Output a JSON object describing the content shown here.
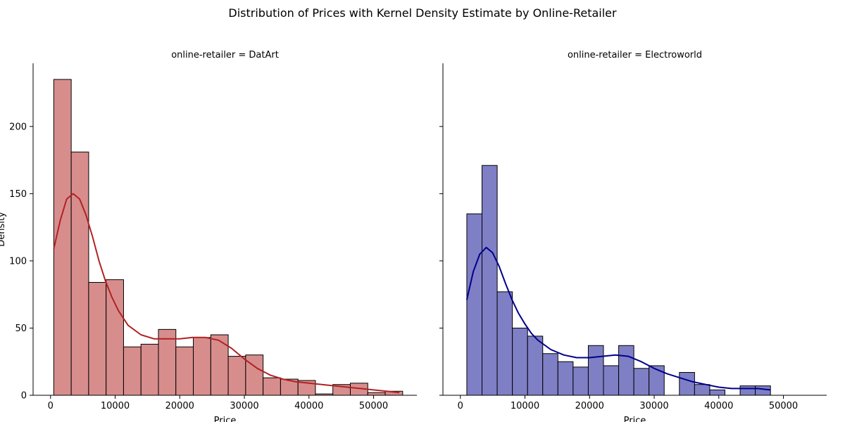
{
  "figure": {
    "title": "Distribution of Prices with Kernel Density Estimate by Online-Retailer"
  },
  "chart_data": [
    {
      "type": "bar",
      "subtype": "histogram-with-kde",
      "title": "online-retailer = DatArt",
      "xlabel": "Price",
      "ylabel": "Density",
      "xlim": [
        -2700,
        56700
      ],
      "ylim": [
        0,
        247
      ],
      "xticks": [
        0,
        10000,
        20000,
        30000,
        40000,
        50000
      ],
      "yticks": [
        0,
        50,
        100,
        150,
        200
      ],
      "bar_fill": "#d88d8d",
      "line_color": "#b22222",
      "bins": [
        {
          "x0": 500,
          "x1": 3200,
          "count": 235
        },
        {
          "x0": 3200,
          "x1": 5900,
          "count": 181
        },
        {
          "x0": 5900,
          "x1": 8600,
          "count": 84
        },
        {
          "x0": 8600,
          "x1": 11300,
          "count": 86
        },
        {
          "x0": 11300,
          "x1": 14000,
          "count": 36
        },
        {
          "x0": 14000,
          "x1": 16700,
          "count": 38
        },
        {
          "x0": 16700,
          "x1": 19400,
          "count": 49
        },
        {
          "x0": 19400,
          "x1": 22100,
          "count": 36
        },
        {
          "x0": 22100,
          "x1": 24800,
          "count": 43
        },
        {
          "x0": 24800,
          "x1": 27500,
          "count": 45
        },
        {
          "x0": 27500,
          "x1": 30200,
          "count": 29
        },
        {
          "x0": 30200,
          "x1": 32900,
          "count": 30
        },
        {
          "x0": 32900,
          "x1": 35600,
          "count": 13
        },
        {
          "x0": 35600,
          "x1": 38300,
          "count": 12
        },
        {
          "x0": 38300,
          "x1": 41000,
          "count": 11
        },
        {
          "x0": 41000,
          "x1": 43700,
          "count": 1
        },
        {
          "x0": 43700,
          "x1": 46400,
          "count": 8
        },
        {
          "x0": 46400,
          "x1": 49100,
          "count": 9
        },
        {
          "x0": 49100,
          "x1": 51800,
          "count": 2
        },
        {
          "x0": 51800,
          "x1": 54500,
          "count": 3
        }
      ],
      "kde": {
        "x": [
          500,
          1500,
          2500,
          3500,
          4500,
          5500,
          6500,
          7500,
          8500,
          9500,
          10500,
          12000,
          14000,
          16000,
          18000,
          20000,
          22000,
          24000,
          26000,
          28000,
          30000,
          32000,
          34000,
          36000,
          38000,
          40000,
          42000,
          44000,
          46000,
          48000,
          50000,
          52000,
          54000
        ],
        "y": [
          109,
          130,
          146,
          150,
          146,
          134,
          118,
          100,
          85,
          73,
          63,
          52,
          45,
          42,
          42,
          42,
          43,
          43,
          41,
          35,
          27,
          20,
          15,
          12,
          10,
          9,
          8,
          7,
          6,
          5,
          4,
          3,
          2
        ]
      }
    },
    {
      "type": "bar",
      "subtype": "histogram-with-kde",
      "title": "online-retailer = Electroworld",
      "xlabel": "Price",
      "ylabel": "",
      "xlim": [
        -2700,
        56700
      ],
      "ylim": [
        0,
        247
      ],
      "xticks": [
        0,
        10000,
        20000,
        30000,
        40000,
        50000
      ],
      "yticks": [
        0,
        50,
        100,
        150,
        200
      ],
      "bar_fill": "#7f7fc6",
      "line_color": "#00008b",
      "bins": [
        {
          "x0": 1000,
          "x1": 3350,
          "count": 135
        },
        {
          "x0": 3350,
          "x1": 5700,
          "count": 171
        },
        {
          "x0": 5700,
          "x1": 8050,
          "count": 77
        },
        {
          "x0": 8050,
          "x1": 10400,
          "count": 50
        },
        {
          "x0": 10400,
          "x1": 12750,
          "count": 44
        },
        {
          "x0": 12750,
          "x1": 15100,
          "count": 31
        },
        {
          "x0": 15100,
          "x1": 17450,
          "count": 25
        },
        {
          "x0": 17450,
          "x1": 19800,
          "count": 21
        },
        {
          "x0": 19800,
          "x1": 22150,
          "count": 37
        },
        {
          "x0": 22150,
          "x1": 24500,
          "count": 22
        },
        {
          "x0": 24500,
          "x1": 26850,
          "count": 37
        },
        {
          "x0": 26850,
          "x1": 29200,
          "count": 20
        },
        {
          "x0": 29200,
          "x1": 31550,
          "count": 22
        },
        {
          "x0": 33900,
          "x1": 36250,
          "count": 17
        },
        {
          "x0": 36250,
          "x1": 38600,
          "count": 8
        },
        {
          "x0": 38600,
          "x1": 40950,
          "count": 4
        },
        {
          "x0": 43300,
          "x1": 45650,
          "count": 7
        },
        {
          "x0": 45650,
          "x1": 48000,
          "count": 7
        }
      ],
      "kde": {
        "x": [
          1000,
          2000,
          3000,
          4000,
          5000,
          6000,
          7000,
          8000,
          9000,
          10000,
          11000,
          12000,
          14000,
          16000,
          18000,
          20000,
          22000,
          24000,
          26000,
          28000,
          30000,
          32000,
          34000,
          36000,
          38000,
          40000,
          42000,
          44000,
          46000,
          48000
        ],
        "y": [
          71,
          92,
          105,
          110,
          106,
          96,
          83,
          71,
          61,
          53,
          46,
          41,
          34,
          30,
          28,
          28,
          29,
          30,
          29,
          25,
          20,
          16,
          13,
          10,
          8,
          6,
          5,
          5,
          5,
          4
        ]
      }
    }
  ]
}
